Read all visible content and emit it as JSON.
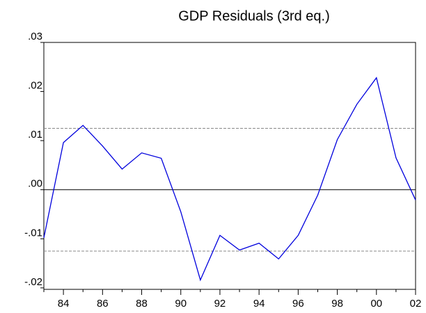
{
  "chart_data": {
    "type": "line",
    "title": "GDP Residuals (3rd eq.)",
    "categories": [
      null,
      "84",
      null,
      "86",
      null,
      "88",
      null,
      "90",
      null,
      "92",
      null,
      "94",
      null,
      "96",
      null,
      "98",
      null,
      "00",
      null,
      "02"
    ],
    "series": [
      {
        "name": "GDP Residuals",
        "color": "#0000dd",
        "values": [
          -0.0098,
          0.0096,
          0.0131,
          0.0089,
          0.0042,
          0.0075,
          0.0064,
          -0.0045,
          -0.0184,
          -0.0093,
          -0.0123,
          -0.0109,
          -0.0141,
          -0.0093,
          -0.0011,
          0.0102,
          0.0174,
          0.0228,
          0.0065,
          -0.0021
        ]
      }
    ],
    "ylim": [
      -0.0203,
      0.03
    ],
    "yticks": [
      {
        "value": -0.02,
        "label": "-.02"
      },
      {
        "value": -0.01,
        "label": "-.01"
      },
      {
        "value": 0,
        "label": ".00"
      },
      {
        "value": 0.01,
        "label": ".01"
      },
      {
        "value": 0.02,
        "label": ".02"
      },
      {
        "value": 0.03,
        "label": ".03"
      }
    ],
    "zero_line": 0,
    "reference_lines": [
      0.0125,
      -0.0125
    ]
  }
}
